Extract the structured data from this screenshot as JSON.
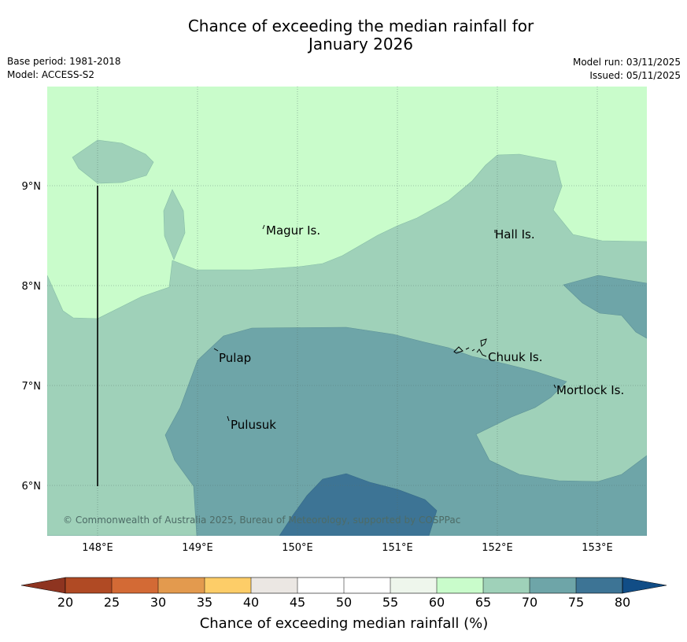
{
  "header": {
    "title_line1": "Chance of exceeding the median rainfall for",
    "title_line2": "January 2026",
    "base_period": "Base period: 1981-2018",
    "model": "Model: ACCESS-S2",
    "model_run": "Model run: 03/11/2025",
    "issued": "Issued: 05/11/2025"
  },
  "map": {
    "lat_labels": [
      "9°N",
      "8°N",
      "7°N",
      "6°N"
    ],
    "lon_labels": [
      "148°E",
      "149°E",
      "150°E",
      "151°E",
      "152°E",
      "153°E"
    ],
    "places": [
      "Magur Is.",
      "Hall Is.",
      "Pulap",
      "Chuuk Is.",
      "Mortlock Is.",
      "Pulusuk"
    ],
    "credit": "© Commonwealth of Australia 2025, Bureau of Meteorology, supported by COSPPac",
    "colors": {
      "band_60_65": "#c9fccb",
      "band_65_70": "#9fd1b9",
      "band_70_75": "#6ea5a8",
      "band_75_80": "#3d7495"
    }
  },
  "colorbar": {
    "ticks": [
      "20",
      "25",
      "30",
      "35",
      "40",
      "45",
      "50",
      "55",
      "60",
      "65",
      "70",
      "75",
      "80"
    ],
    "colors": [
      "#b04a24",
      "#d36a35",
      "#e39a4e",
      "#fdcd68",
      "#ebe7e3",
      "#ffffff",
      "#ffffff",
      "#eef6ec",
      "#c9fccb",
      "#9fd1b9",
      "#6ea5a8",
      "#3d7495"
    ],
    "low_extend_color": "#8e3420",
    "high_extend_color": "#114d86",
    "label": "Chance of exceeding median rainfall (%)"
  }
}
